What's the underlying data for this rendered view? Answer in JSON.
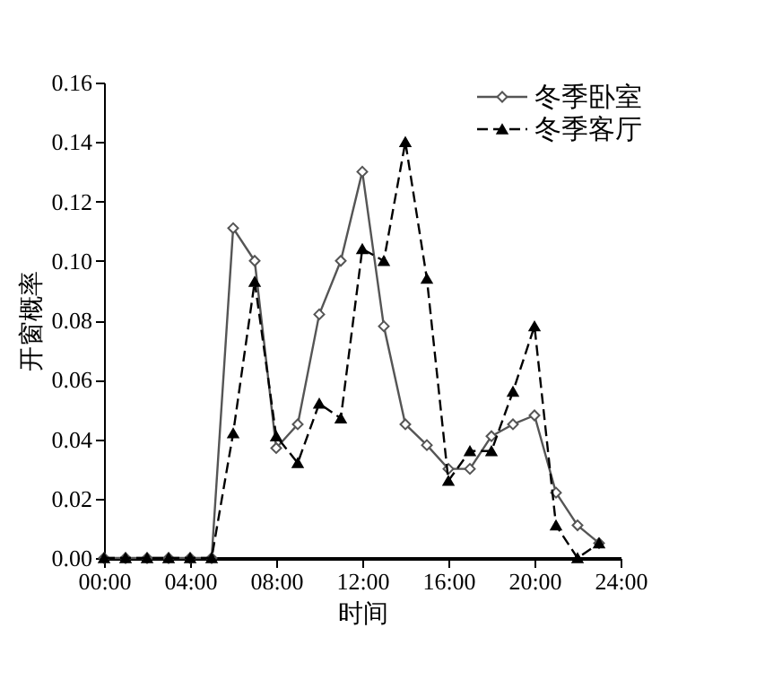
{
  "chart_data": {
    "type": "line",
    "xlabel": "时间",
    "ylabel": "开窗概率",
    "x": [
      0,
      1,
      2,
      3,
      4,
      5,
      6,
      7,
      8,
      9,
      10,
      11,
      12,
      13,
      14,
      15,
      16,
      17,
      18,
      19,
      20,
      21,
      22,
      23
    ],
    "series": [
      {
        "name": "冬季卧室",
        "color": "#555555",
        "marker": "diamond",
        "line_style": "solid",
        "values": [
          0,
          0,
          0,
          0,
          0,
          0,
          0.111,
          0.1,
          0.037,
          0.045,
          0.082,
          0.1,
          0.13,
          0.078,
          0.045,
          0.038,
          0.03,
          0.03,
          0.041,
          0.045,
          0.048,
          0.022,
          0.011,
          0.005
        ]
      },
      {
        "name": "冬季客厅",
        "color": "#000000",
        "marker": "triangle",
        "line_style": "dashed",
        "values": [
          0,
          0,
          0,
          0,
          0,
          0,
          0.042,
          0.093,
          0.041,
          0.032,
          0.052,
          0.047,
          0.104,
          0.1,
          0.14,
          0.094,
          0.026,
          0.036,
          0.036,
          0.056,
          0.078,
          0.011,
          0,
          0.005
        ]
      }
    ],
    "xlim": [
      0,
      24
    ],
    "xticks": [
      {
        "value": 0,
        "label": "00:00"
      },
      {
        "value": 4,
        "label": "04:00"
      },
      {
        "value": 8,
        "label": "08:00"
      },
      {
        "value": 12,
        "label": "12:00"
      },
      {
        "value": 16,
        "label": "16:00"
      },
      {
        "value": 20,
        "label": "20:00"
      },
      {
        "value": 24,
        "label": "24:00"
      }
    ],
    "ylim": [
      0,
      0.16
    ],
    "yticks": [
      {
        "value": 0,
        "label": "0.00"
      },
      {
        "value": 0.02,
        "label": "0.02"
      },
      {
        "value": 0.04,
        "label": "0.04"
      },
      {
        "value": 0.06,
        "label": "0.06"
      },
      {
        "value": 0.08,
        "label": "0.08"
      },
      {
        "value": 0.1,
        "label": "0.10"
      },
      {
        "value": 0.12,
        "label": "0.12"
      },
      {
        "value": 0.14,
        "label": "0.14"
      },
      {
        "value": 0.16,
        "label": "0.16"
      }
    ],
    "legend": "top right",
    "grid": false
  }
}
